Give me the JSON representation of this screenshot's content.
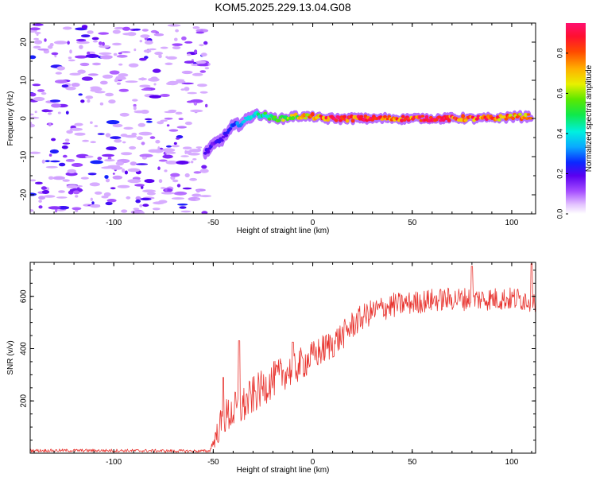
{
  "title": "KOM5.2025.229.13.04.G08",
  "chart_data": [
    {
      "type": "heatmap",
      "title": "KOM5.2025.229.13.04.G08",
      "xlabel": "Height of straight line (km)",
      "ylabel": "Frequency (Hz)",
      "xlim": [
        -142,
        112
      ],
      "ylim": [
        -25,
        25
      ],
      "xticks": [
        -100,
        -50,
        0,
        50,
        100
      ],
      "yticks": [
        -20,
        -10,
        0,
        10,
        20
      ],
      "colorbar": {
        "label": "Normalized spectral amplitude",
        "range": [
          0,
          0.95
        ],
        "ticks": [
          0.0,
          0.2,
          0.4,
          0.6,
          0.8
        ],
        "tick_labels": [
          "0.0",
          "0.2",
          "0.4",
          "0.6",
          "0.8"
        ]
      },
      "noise_region": {
        "x_range": [
          -142,
          -53
        ],
        "amplitude_range": [
          0.0,
          0.25
        ],
        "density": 0.4
      },
      "ridge": {
        "x": [
          -54,
          -50,
          -45,
          -40,
          -35,
          -30,
          -25,
          -20,
          -15,
          -10,
          -5,
          0,
          5,
          10,
          20,
          30,
          40,
          50,
          60,
          70,
          80,
          90,
          100,
          110
        ],
        "frequency": [
          -9,
          -7,
          -5,
          -2,
          -1,
          1,
          1,
          0,
          0,
          0.5,
          0.5,
          0.5,
          0,
          0,
          0,
          0,
          0,
          0,
          0,
          0,
          0,
          0,
          0.5,
          0.5
        ],
        "amplitude": [
          0.2,
          0.2,
          0.22,
          0.28,
          0.35,
          0.45,
          0.5,
          0.55,
          0.6,
          0.65,
          0.72,
          0.78,
          0.85,
          0.88,
          0.9,
          0.9,
          0.92,
          0.9,
          0.92,
          0.9,
          0.88,
          0.85,
          0.8,
          0.75
        ]
      }
    },
    {
      "type": "line",
      "xlabel": "Height of straight line (km)",
      "ylabel": "SNR (v/v)",
      "xlim": [
        -142,
        112
      ],
      "ylim": [
        0,
        730
      ],
      "xticks": [
        -100,
        -50,
        0,
        50,
        100
      ],
      "yticks": [
        200,
        400,
        600
      ],
      "series": [
        {
          "name": "SNR",
          "color": "#e8342f",
          "trend_x": [
            -142,
            -100,
            -60,
            -52,
            -50,
            -47,
            -45,
            -40,
            -35,
            -30,
            -25,
            -20,
            -15,
            -10,
            -5,
            0,
            5,
            10,
            15,
            20,
            25,
            30,
            35,
            40,
            45,
            50,
            60,
            70,
            80,
            90,
            100,
            112
          ],
          "trend_y": [
            10,
            10,
            8,
            8,
            40,
            95,
            130,
            160,
            180,
            220,
            250,
            280,
            305,
            320,
            345,
            370,
            395,
            420,
            450,
            490,
            520,
            540,
            555,
            565,
            570,
            575,
            585,
            590,
            590,
            590,
            590,
            590
          ],
          "spread": [
            6,
            6,
            6,
            6,
            25,
            55,
            70,
            75,
            75,
            75,
            70,
            70,
            65,
            65,
            65,
            60,
            60,
            60,
            55,
            55,
            50,
            50,
            50,
            50,
            45,
            45,
            45,
            45,
            45,
            45,
            45,
            50
          ],
          "peaks": [
            {
              "x": -45,
              "y": 290
            },
            {
              "x": -37,
              "y": 430
            },
            {
              "x": -10,
              "y": 425
            },
            {
              "x": 80,
              "y": 715
            },
            {
              "x": 110,
              "y": 725
            }
          ]
        }
      ]
    }
  ]
}
